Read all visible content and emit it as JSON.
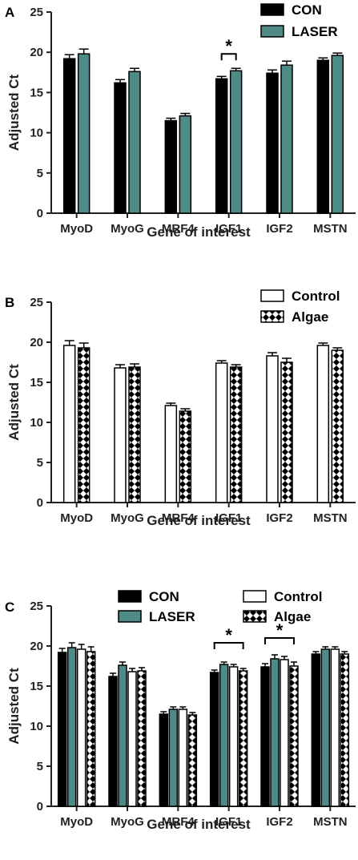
{
  "colors": {
    "CON": "#000000",
    "LASER": "#4e8a86",
    "Control": "#ffffff",
    "Algae": "pattern-checker",
    "axis": "#222222"
  },
  "chart_data": [
    {
      "type": "bar",
      "panel_label": "A",
      "xlabel": "Gene of interest",
      "ylabel": "Adjusted Ct",
      "ylim": [
        0,
        25
      ],
      "yticks": [
        0,
        5,
        10,
        15,
        20,
        25
      ],
      "legend_position": "top-right",
      "categories": [
        "MyoD",
        "MyoG",
        "MRF4",
        "IGF1",
        "IGF2",
        "MSTN"
      ],
      "series": [
        {
          "name": "CON",
          "values": [
            19.2,
            16.2,
            11.5,
            16.7,
            17.4,
            19.0
          ],
          "errors": [
            0.5,
            0.4,
            0.3,
            0.3,
            0.4,
            0.3
          ]
        },
        {
          "name": "LASER",
          "values": [
            19.8,
            17.6,
            12.1,
            17.7,
            18.4,
            19.6
          ],
          "errors": [
            0.6,
            0.4,
            0.3,
            0.3,
            0.5,
            0.3
          ]
        }
      ],
      "annotations": [
        {
          "text": "*",
          "category": "IGF1",
          "from_series": 0,
          "to_series": 1,
          "y": 19.8
        }
      ]
    },
    {
      "type": "bar",
      "panel_label": "B",
      "xlabel": "Gene of interest",
      "ylabel": "Adjusted Ct",
      "ylim": [
        0,
        25
      ],
      "yticks": [
        0,
        5,
        10,
        15,
        20,
        25
      ],
      "legend_position": "top-right",
      "categories": [
        "MyoD",
        "MyoG",
        "MRF4",
        "IGF1",
        "IGF2",
        "MSTN"
      ],
      "series": [
        {
          "name": "Control",
          "values": [
            19.6,
            16.8,
            12.1,
            17.4,
            18.3,
            19.6
          ],
          "errors": [
            0.6,
            0.4,
            0.3,
            0.3,
            0.4,
            0.3
          ]
        },
        {
          "name": "Algae",
          "values": [
            19.3,
            16.9,
            11.4,
            16.9,
            17.5,
            19.0
          ],
          "errors": [
            0.6,
            0.4,
            0.3,
            0.3,
            0.5,
            0.3
          ]
        }
      ],
      "annotations": []
    },
    {
      "type": "bar",
      "panel_label": "C",
      "xlabel": "Gene of interest",
      "ylabel": "Adjusted Ct",
      "ylim": [
        0,
        25
      ],
      "yticks": [
        0,
        5,
        10,
        15,
        20,
        25
      ],
      "legend_position": "top",
      "categories": [
        "MyoD",
        "MyoG",
        "MRF4",
        "IGF1",
        "IGF2",
        "MSTN"
      ],
      "series": [
        {
          "name": "CON",
          "values": [
            19.2,
            16.2,
            11.5,
            16.7,
            17.4,
            19.0
          ],
          "errors": [
            0.5,
            0.4,
            0.3,
            0.3,
            0.4,
            0.3
          ]
        },
        {
          "name": "LASER",
          "values": [
            19.8,
            17.6,
            12.1,
            17.7,
            18.4,
            19.6
          ],
          "errors": [
            0.6,
            0.4,
            0.3,
            0.3,
            0.5,
            0.3
          ]
        },
        {
          "name": "Control",
          "values": [
            19.6,
            16.8,
            12.1,
            17.4,
            18.3,
            19.6
          ],
          "errors": [
            0.6,
            0.4,
            0.3,
            0.3,
            0.4,
            0.3
          ]
        },
        {
          "name": "Algae",
          "values": [
            19.3,
            16.9,
            11.4,
            16.9,
            17.5,
            19.0
          ],
          "errors": [
            0.6,
            0.4,
            0.3,
            0.3,
            0.5,
            0.3
          ]
        }
      ],
      "annotations": [
        {
          "text": "*",
          "category": "IGF1",
          "from_series": 0,
          "to_series": 3,
          "y": 20.4
        },
        {
          "text": "*",
          "category": "IGF2",
          "from_series": 0,
          "to_series": 3,
          "y": 21.0
        }
      ]
    }
  ]
}
